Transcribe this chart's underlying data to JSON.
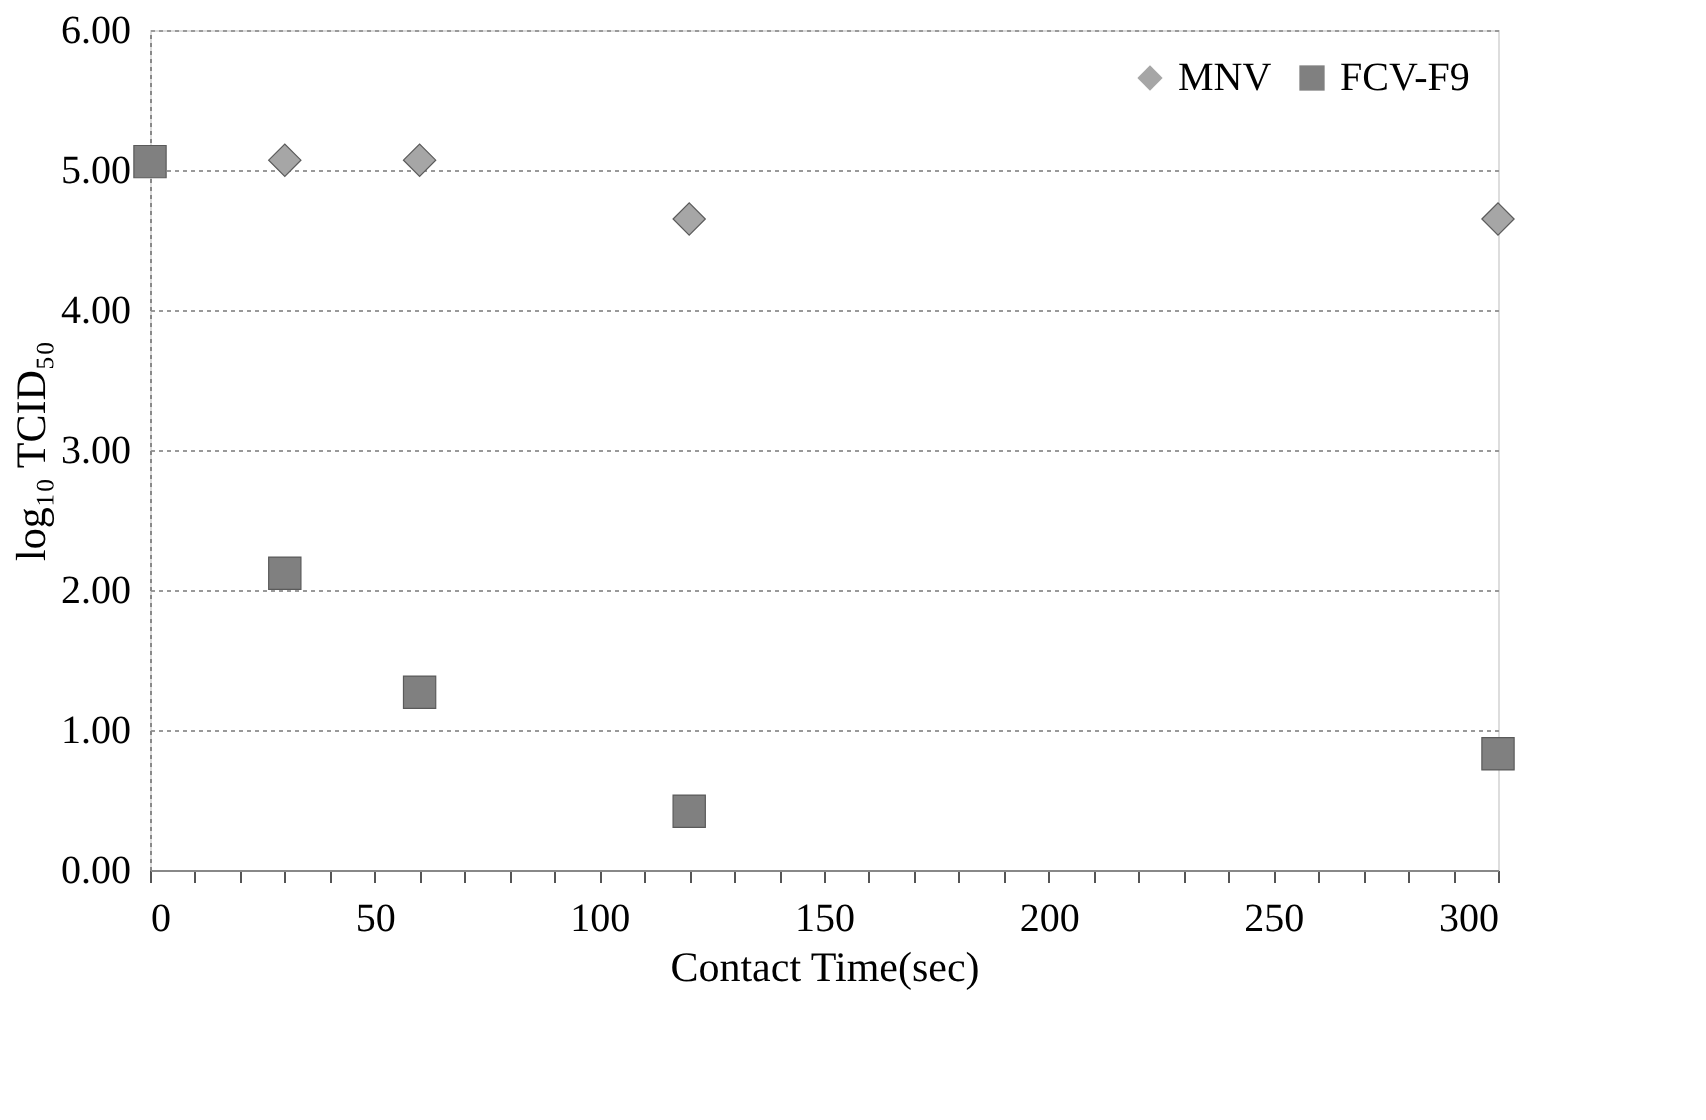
{
  "chart_data": {
    "type": "scatter",
    "xlabel": "Contact Time(sec)",
    "ylabel": "log₁₀ TCID₅₀",
    "series": [
      {
        "name": "MNV",
        "color": "#a6a6a6",
        "marker": "diamond",
        "x": [
          30,
          60,
          120,
          300
        ],
        "values": [
          5.07,
          5.07,
          4.65,
          4.65
        ]
      },
      {
        "name": "FCV-F9",
        "color": "#808080",
        "marker": "square",
        "x": [
          0,
          30,
          60,
          120,
          300
        ],
        "values": [
          5.06,
          2.12,
          1.27,
          0.42,
          0.83
        ]
      }
    ],
    "xlim": [
      0,
      300
    ],
    "xticks": [
      0,
      {
        "value": 10,
        "label": null
      },
      {
        "value": 20,
        "label": null
      },
      {
        "value": 30,
        "label": null
      },
      {
        "value": 40,
        "label": null
      },
      50,
      {
        "value": 60,
        "label": null
      },
      {
        "value": 70,
        "label": null
      },
      {
        "value": 80,
        "label": null
      },
      {
        "value": 90,
        "label": null
      },
      100,
      {
        "value": 110,
        "label": null
      },
      {
        "value": 120,
        "label": null
      },
      {
        "value": 130,
        "label": null
      },
      {
        "value": 140,
        "label": null
      },
      150,
      {
        "value": 160,
        "label": null
      },
      {
        "value": 170,
        "label": null
      },
      {
        "value": 180,
        "label": null
      },
      {
        "value": 190,
        "label": null
      },
      200,
      {
        "value": 210,
        "label": null
      },
      {
        "value": 220,
        "label": null
      },
      {
        "value": 230,
        "label": null
      },
      {
        "value": 240,
        "label": null
      },
      250,
      {
        "value": 260,
        "label": null
      },
      {
        "value": 270,
        "label": null
      },
      {
        "value": 280,
        "label": null
      },
      {
        "value": 290,
        "label": null
      },
      300
    ],
    "ylim": [
      0,
      6
    ],
    "yticks": [
      {
        "value": 0,
        "label": "0.00"
      },
      {
        "value": 1,
        "label": "1.00"
      },
      {
        "value": 2,
        "label": "2.00"
      },
      {
        "value": 3,
        "label": "3.00"
      },
      {
        "value": 4,
        "label": "4.00"
      },
      {
        "value": 5,
        "label": "5.00"
      },
      {
        "value": 6,
        "label": "6.00"
      }
    ],
    "grid": "y",
    "legend": "top right"
  }
}
